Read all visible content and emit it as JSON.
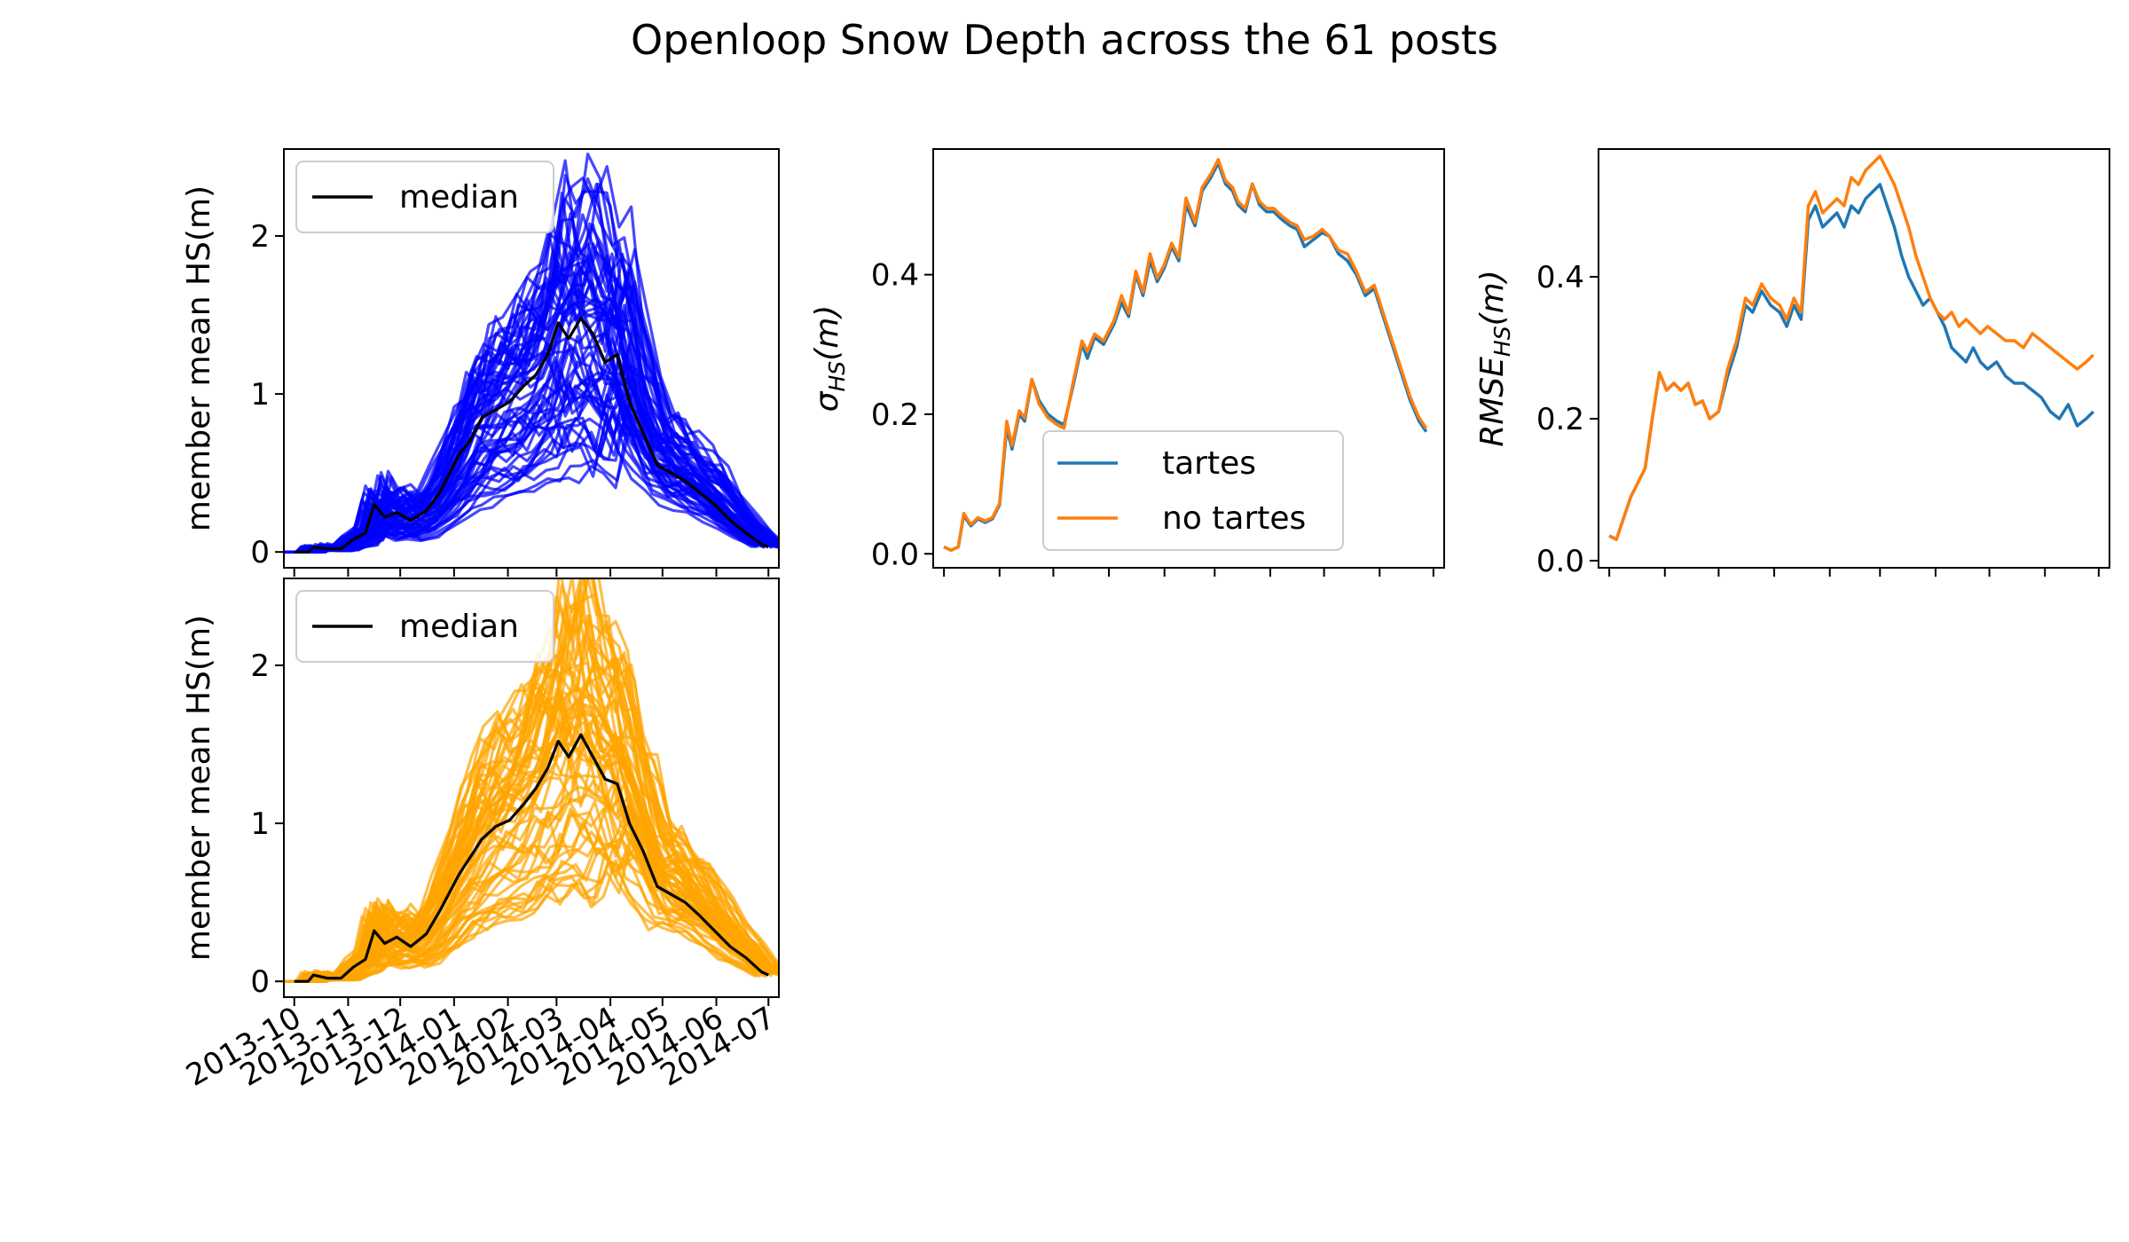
{
  "figure": {
    "title": "Openloop Snow Depth across the 61 posts"
  },
  "chart_data": [
    {
      "id": "tartes_ensemble",
      "type": "line",
      "ylabel": "member mean HS(m)",
      "xlabel": "",
      "x_ticks": [
        "2013-10",
        "2013-11",
        "2013-12",
        "2014-01",
        "2014-02",
        "2014-03",
        "2014-04",
        "2014-05",
        "2014-06",
        "2014-07"
      ],
      "x_tick_labels_visible": false,
      "xlim": [
        "2013-10-01",
        "2014-07-01"
      ],
      "ylim": [
        -0.1,
        2.55
      ],
      "y_ticks": [
        0,
        1,
        2
      ],
      "legend": {
        "placement": "top-left",
        "entries": [
          {
            "name": "median",
            "color": "#000000"
          }
        ]
      },
      "member_color": "#0000ff",
      "median_color": "#000000",
      "members_count": 61,
      "median": {
        "name": "median",
        "x": [
          "2013-10-01",
          "2013-10-09",
          "2013-10-12",
          "2013-10-20",
          "2013-10-28",
          "2013-11-04",
          "2013-11-11",
          "2013-11-16",
          "2013-11-22",
          "2013-11-29",
          "2013-12-07",
          "2013-12-16",
          "2013-12-24",
          "2014-01-04",
          "2014-01-10",
          "2014-01-17",
          "2014-01-25",
          "2014-02-02",
          "2014-02-10",
          "2014-02-17",
          "2014-02-24",
          "2014-03-02",
          "2014-03-08",
          "2014-03-15",
          "2014-03-22",
          "2014-03-29",
          "2014-04-05",
          "2014-04-12",
          "2014-04-20",
          "2014-04-28",
          "2014-05-06",
          "2014-05-14",
          "2014-05-22",
          "2014-05-31",
          "2014-06-09",
          "2014-06-18",
          "2014-06-27",
          "2014-07-01"
        ],
        "values": [
          0.0,
          0.0,
          0.03,
          0.02,
          0.02,
          0.08,
          0.12,
          0.3,
          0.22,
          0.25,
          0.2,
          0.26,
          0.38,
          0.62,
          0.7,
          0.85,
          0.9,
          0.95,
          1.05,
          1.12,
          1.25,
          1.45,
          1.35,
          1.48,
          1.38,
          1.2,
          1.25,
          0.95,
          0.75,
          0.55,
          0.5,
          0.45,
          0.38,
          0.3,
          0.2,
          0.12,
          0.05,
          0.03
        ]
      }
    },
    {
      "id": "no_tartes_ensemble",
      "type": "line",
      "ylabel": "member mean HS(m)",
      "xlabel": "",
      "x_ticks": [
        "2013-10",
        "2013-11",
        "2013-12",
        "2014-01",
        "2014-02",
        "2014-03",
        "2014-04",
        "2014-05",
        "2014-06",
        "2014-07"
      ],
      "xlim": [
        "2013-10-01",
        "2014-07-01"
      ],
      "ylim": [
        -0.1,
        2.55
      ],
      "y_ticks": [
        0,
        1,
        2
      ],
      "legend": {
        "placement": "top-left",
        "entries": [
          {
            "name": "median",
            "color": "#000000"
          }
        ]
      },
      "member_color": "#ffa500",
      "median_color": "#000000",
      "members_count": 61,
      "median": {
        "name": "median",
        "x": [
          "2013-10-01",
          "2013-10-09",
          "2013-10-12",
          "2013-10-20",
          "2013-10-28",
          "2013-11-04",
          "2013-11-11",
          "2013-11-16",
          "2013-11-22",
          "2013-11-29",
          "2013-12-07",
          "2013-12-16",
          "2013-12-24",
          "2014-01-04",
          "2014-01-10",
          "2014-01-17",
          "2014-01-25",
          "2014-02-02",
          "2014-02-10",
          "2014-02-17",
          "2014-02-24",
          "2014-03-02",
          "2014-03-08",
          "2014-03-15",
          "2014-03-22",
          "2014-03-29",
          "2014-04-05",
          "2014-04-12",
          "2014-04-20",
          "2014-04-28",
          "2014-05-06",
          "2014-05-14",
          "2014-05-22",
          "2014-05-31",
          "2014-06-09",
          "2014-06-18",
          "2014-06-27",
          "2014-07-01"
        ],
        "values": [
          0.0,
          0.0,
          0.04,
          0.02,
          0.02,
          0.09,
          0.14,
          0.32,
          0.24,
          0.28,
          0.22,
          0.3,
          0.45,
          0.68,
          0.78,
          0.9,
          0.98,
          1.02,
          1.12,
          1.22,
          1.35,
          1.52,
          1.42,
          1.56,
          1.42,
          1.28,
          1.25,
          1.0,
          0.82,
          0.6,
          0.55,
          0.5,
          0.42,
          0.32,
          0.22,
          0.15,
          0.06,
          0.04
        ]
      }
    },
    {
      "id": "spread",
      "type": "line",
      "ylabel": "σ_HS(m)",
      "ylabel_main": "σ",
      "ylabel_sub": "HS",
      "ylabel_suffix": "(m)",
      "xlabel": "",
      "x_tick_labels_visible": false,
      "xlim": [
        "2013-10-01",
        "2014-07-01"
      ],
      "ylim": [
        -0.02,
        0.58
      ],
      "y_ticks": [
        "0.0",
        "0.2",
        "0.4"
      ],
      "legend": {
        "placement": "lower-center",
        "entries": [
          {
            "name": "tartes",
            "color": "#1f77b4"
          },
          {
            "name": "no tartes",
            "color": "#ff7f0e"
          }
        ]
      },
      "x": [
        "2013-10-01",
        "2013-10-05",
        "2013-10-09",
        "2013-10-12",
        "2013-10-16",
        "2013-10-20",
        "2013-10-24",
        "2013-10-28",
        "2013-11-01",
        "2013-11-05",
        "2013-11-08",
        "2013-11-12",
        "2013-11-15",
        "2013-11-19",
        "2013-11-23",
        "2013-11-28",
        "2013-12-03",
        "2013-12-07",
        "2013-12-12",
        "2013-12-17",
        "2013-12-20",
        "2013-12-24",
        "2013-12-29",
        "2014-01-04",
        "2014-01-08",
        "2014-01-12",
        "2014-01-16",
        "2014-01-20",
        "2014-01-24",
        "2014-01-28",
        "2014-02-01",
        "2014-02-05",
        "2014-02-09",
        "2014-02-13",
        "2014-02-18",
        "2014-02-22",
        "2014-02-27",
        "2014-03-03",
        "2014-03-07",
        "2014-03-11",
        "2014-03-14",
        "2014-03-18",
        "2014-03-22",
        "2014-03-26",
        "2014-03-30",
        "2014-04-03",
        "2014-04-07",
        "2014-04-12",
        "2014-04-16",
        "2014-04-20",
        "2014-04-25",
        "2014-04-30",
        "2014-05-04",
        "2014-05-09",
        "2014-05-14",
        "2014-05-19",
        "2014-05-24",
        "2014-05-29",
        "2014-06-03",
        "2014-06-08",
        "2014-06-13",
        "2014-06-18",
        "2014-06-23",
        "2014-06-27"
      ],
      "series": [
        {
          "name": "tartes",
          "color": "#1f77b4",
          "values": [
            0.01,
            0.005,
            0.01,
            0.055,
            0.04,
            0.05,
            0.045,
            0.05,
            0.07,
            0.18,
            0.15,
            0.2,
            0.19,
            0.25,
            0.22,
            0.2,
            0.19,
            0.185,
            0.24,
            0.3,
            0.28,
            0.31,
            0.3,
            0.33,
            0.36,
            0.34,
            0.4,
            0.37,
            0.42,
            0.39,
            0.41,
            0.44,
            0.42,
            0.5,
            0.47,
            0.52,
            0.54,
            0.56,
            0.53,
            0.52,
            0.5,
            0.49,
            0.53,
            0.5,
            0.49,
            0.49,
            0.48,
            0.47,
            0.465,
            0.44,
            0.45,
            0.46,
            0.455,
            0.43,
            0.42,
            0.4,
            0.37,
            0.38,
            0.34,
            0.3,
            0.26,
            0.22,
            0.19,
            0.175
          ]
        },
        {
          "name": "no tartes",
          "color": "#ff7f0e",
          "values": [
            0.01,
            0.005,
            0.01,
            0.058,
            0.042,
            0.052,
            0.047,
            0.052,
            0.072,
            0.19,
            0.155,
            0.205,
            0.195,
            0.25,
            0.215,
            0.195,
            0.185,
            0.18,
            0.245,
            0.305,
            0.29,
            0.315,
            0.305,
            0.335,
            0.37,
            0.345,
            0.405,
            0.375,
            0.43,
            0.395,
            0.415,
            0.445,
            0.425,
            0.51,
            0.475,
            0.525,
            0.545,
            0.565,
            0.535,
            0.525,
            0.505,
            0.495,
            0.53,
            0.505,
            0.495,
            0.495,
            0.485,
            0.475,
            0.47,
            0.45,
            0.455,
            0.465,
            0.455,
            0.435,
            0.43,
            0.405,
            0.375,
            0.385,
            0.345,
            0.305,
            0.265,
            0.225,
            0.195,
            0.18
          ]
        }
      ]
    },
    {
      "id": "rmse",
      "type": "line",
      "ylabel": "RMSE_HS(m)",
      "ylabel_main": "RMSE",
      "ylabel_sub": "HS",
      "ylabel_suffix": "(m)",
      "xlabel": "",
      "x_tick_labels_visible": false,
      "xlim": [
        "2013-10-01",
        "2014-07-01"
      ],
      "ylim": [
        -0.01,
        0.58
      ],
      "y_ticks": [
        "0.0",
        "0.2",
        "0.4"
      ],
      "x": [
        "2013-10-01",
        "2013-10-05",
        "2013-10-09",
        "2013-10-13",
        "2013-10-17",
        "2013-10-21",
        "2013-10-25",
        "2013-10-29",
        "2013-11-02",
        "2013-11-06",
        "2013-11-10",
        "2013-11-14",
        "2013-11-18",
        "2013-11-22",
        "2013-11-26",
        "2013-12-01",
        "2013-12-06",
        "2013-12-11",
        "2013-12-16",
        "2013-12-20",
        "2013-12-25",
        "2013-12-30",
        "2014-01-04",
        "2014-01-08",
        "2014-01-12",
        "2014-01-16",
        "2014-01-20",
        "2014-01-24",
        "2014-01-28",
        "2014-02-01",
        "2014-02-05",
        "2014-02-09",
        "2014-02-13",
        "2014-02-17",
        "2014-02-21",
        "2014-02-25",
        "2014-03-01",
        "2014-03-05",
        "2014-03-09",
        "2014-03-13",
        "2014-03-17",
        "2014-03-21",
        "2014-03-25",
        "2014-03-29",
        "2014-04-02",
        "2014-04-06",
        "2014-04-10",
        "2014-04-14",
        "2014-04-18",
        "2014-04-22",
        "2014-04-26",
        "2014-04-30",
        "2014-05-05",
        "2014-05-10",
        "2014-05-15",
        "2014-05-20",
        "2014-05-25",
        "2014-05-30",
        "2014-06-04",
        "2014-06-09",
        "2014-06-14",
        "2014-06-19",
        "2014-06-24",
        "2014-06-28"
      ],
      "series": [
        {
          "name": "tartes",
          "color": "#1f77b4",
          "values": [
            0.035,
            0.03,
            0.06,
            0.09,
            0.11,
            0.13,
            0.2,
            0.265,
            0.24,
            0.25,
            0.24,
            0.25,
            0.22,
            0.225,
            0.2,
            0.21,
            0.26,
            0.3,
            0.36,
            0.35,
            0.38,
            0.36,
            0.35,
            0.33,
            0.36,
            0.34,
            0.48,
            0.5,
            0.47,
            0.48,
            0.49,
            0.47,
            0.5,
            0.49,
            0.51,
            0.52,
            0.53,
            0.5,
            0.47,
            0.43,
            0.4,
            0.38,
            0.36,
            0.37,
            0.35,
            0.33,
            0.3,
            0.29,
            0.28,
            0.3,
            0.28,
            0.27,
            0.28,
            0.26,
            0.25,
            0.25,
            0.24,
            0.23,
            0.21,
            0.2,
            0.22,
            0.19,
            0.2,
            0.21
          ]
        },
        {
          "name": "no tartes",
          "color": "#ff7f0e",
          "values": [
            0.035,
            0.03,
            0.06,
            0.09,
            0.11,
            0.13,
            0.2,
            0.265,
            0.24,
            0.25,
            0.24,
            0.25,
            0.22,
            0.225,
            0.2,
            0.21,
            0.27,
            0.31,
            0.37,
            0.36,
            0.39,
            0.37,
            0.36,
            0.34,
            0.37,
            0.35,
            0.5,
            0.52,
            0.49,
            0.5,
            0.51,
            0.5,
            0.54,
            0.53,
            0.55,
            0.56,
            0.57,
            0.55,
            0.53,
            0.5,
            0.47,
            0.43,
            0.4,
            0.37,
            0.35,
            0.34,
            0.35,
            0.33,
            0.34,
            0.33,
            0.32,
            0.33,
            0.32,
            0.31,
            0.31,
            0.3,
            0.32,
            0.31,
            0.3,
            0.29,
            0.28,
            0.27,
            0.28,
            0.29
          ]
        }
      ]
    }
  ]
}
